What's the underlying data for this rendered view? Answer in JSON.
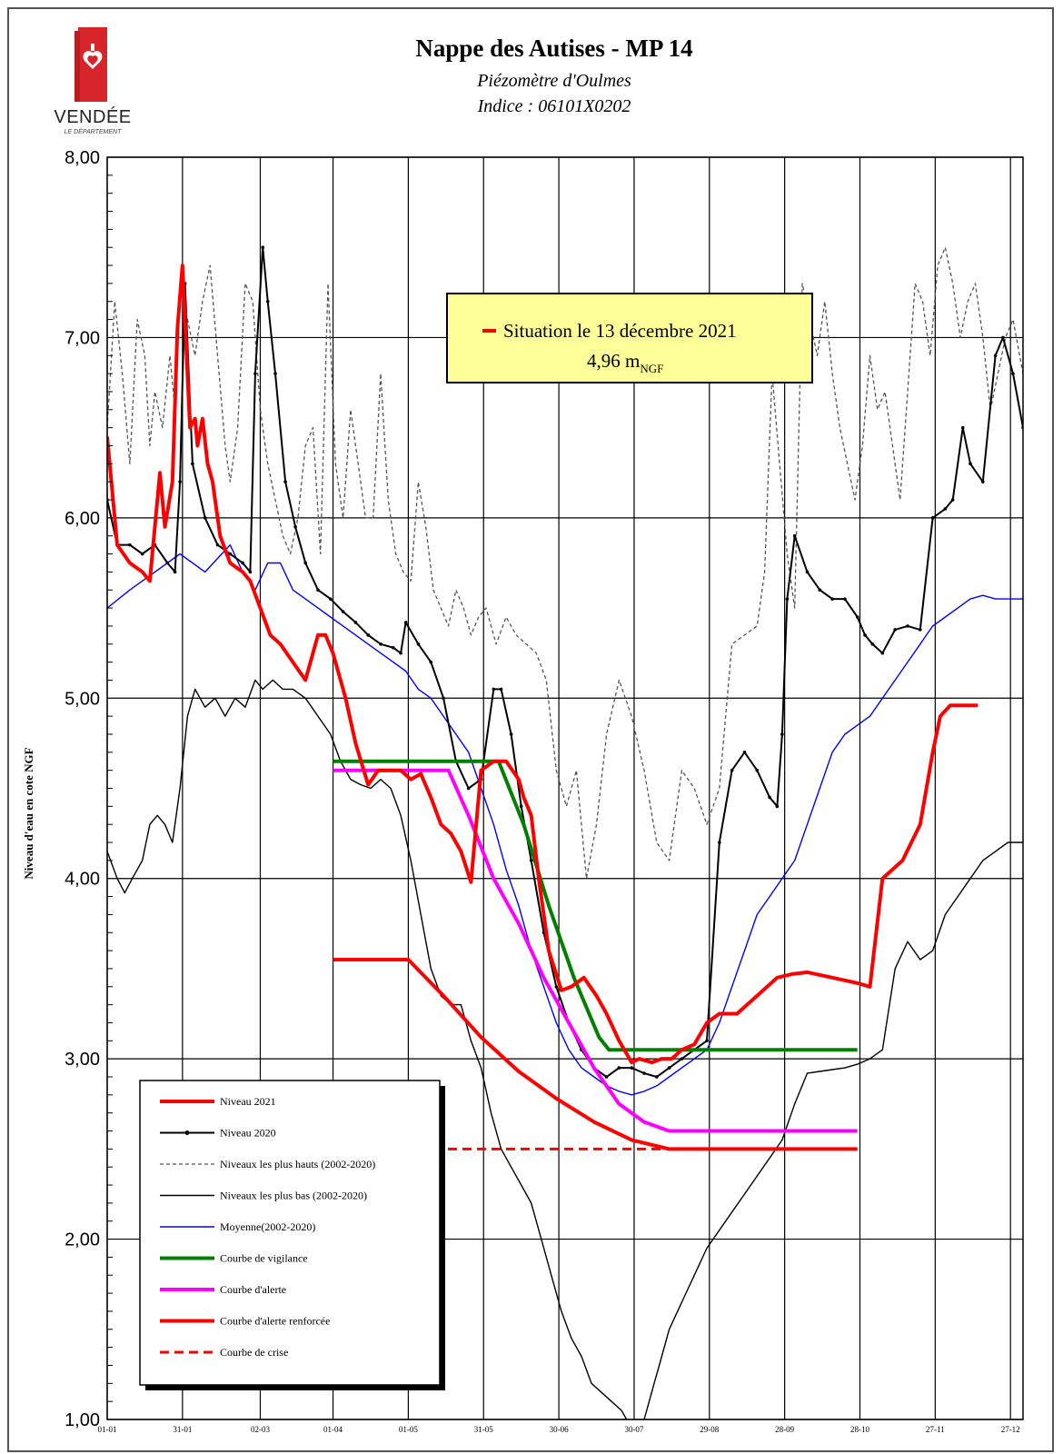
{
  "logo": {
    "name": "VENDÉE",
    "subtitle": "LE DÉPARTEMENT"
  },
  "header": {
    "title": "Nappe des Autises - MP 14",
    "subtitle": "Piézomètre d'Oulmes",
    "indice": "Indice : 06101X0202"
  },
  "chart_data": {
    "type": "line",
    "ylabel": "Niveau d'eau en cote NGF",
    "ylim": [
      1,
      8
    ],
    "yticks": [
      1,
      2,
      3,
      4,
      5,
      6,
      7,
      8
    ],
    "ytick_labels": [
      "1,00",
      "2,00",
      "3,00",
      "4,00",
      "5,00",
      "6,00",
      "7,00",
      "8,00"
    ],
    "x_unit": "day of year",
    "xlim": [
      1,
      366
    ],
    "xticks": [
      1,
      31,
      62,
      91,
      121,
      151,
      181,
      211,
      241,
      271,
      301,
      331,
      361
    ],
    "xtick_labels": [
      "01-01",
      "31-01",
      "02-03",
      "01-04",
      "01-05",
      "31-05",
      "30-06",
      "30-07",
      "29-08",
      "28-09",
      "28-10",
      "27-11",
      "27-12"
    ],
    "grid": true,
    "annotation": {
      "line1": "Situation le 13 décembre 2021",
      "value": "4,96 m",
      "unit_sub": "NGF"
    },
    "legend_position": "bottom-left",
    "series": [
      {
        "name": "Niveau 2021",
        "color": "#ff0000",
        "style": "solid-thick",
        "x": [
          1,
          5,
          10,
          15,
          18,
          22,
          24,
          27,
          29,
          31,
          34,
          36,
          37,
          39,
          41,
          43,
          46,
          50,
          55,
          58,
          62,
          66,
          70,
          75,
          80,
          85,
          88,
          91,
          96,
          100,
          105,
          109,
          114,
          118,
          122,
          126,
          130,
          134,
          138,
          142,
          146,
          150,
          155,
          160,
          165,
          167,
          170,
          173,
          177,
          182,
          186,
          191,
          196,
          200,
          205,
          210,
          213,
          218,
          222,
          226,
          230,
          235,
          240,
          245,
          252,
          260,
          268,
          274,
          280,
          290,
          300,
          305,
          310,
          318,
          325,
          330,
          333,
          337,
          341,
          345,
          348
        ],
        "y": [
          6.45,
          5.85,
          5.75,
          5.7,
          5.65,
          6.25,
          5.95,
          6.2,
          7.05,
          7.4,
          6.5,
          6.55,
          6.4,
          6.55,
          6.3,
          6.2,
          5.9,
          5.75,
          5.7,
          5.65,
          5.5,
          5.35,
          5.3,
          5.2,
          5.1,
          5.35,
          5.35,
          5.25,
          5.0,
          4.75,
          4.52,
          4.6,
          4.6,
          4.6,
          4.55,
          4.58,
          4.45,
          4.3,
          4.25,
          4.15,
          3.98,
          4.6,
          4.65,
          4.65,
          4.55,
          4.45,
          4.35,
          4.0,
          3.6,
          3.38,
          3.4,
          3.45,
          3.35,
          3.25,
          3.1,
          2.98,
          3.0,
          2.98,
          3.0,
          3.0,
          3.05,
          3.08,
          3.2,
          3.25,
          3.25,
          3.35,
          3.45,
          3.47,
          3.48,
          3.45,
          3.42,
          3.4,
          4.0,
          4.1,
          4.3,
          4.7,
          4.9,
          4.96,
          4.96,
          4.96,
          4.96
        ]
      },
      {
        "name": "Niveau 2020",
        "color": "#000000",
        "style": "solid-markers",
        "x": [
          1,
          5,
          10,
          15,
          20,
          25,
          28,
          30,
          32,
          35,
          40,
          45,
          50,
          55,
          58,
          60,
          63,
          65,
          68,
          72,
          76,
          80,
          85,
          90,
          95,
          100,
          105,
          110,
          115,
          118,
          120,
          125,
          130,
          135,
          140,
          145,
          150,
          155,
          158,
          162,
          166,
          170,
          175,
          180,
          185,
          190,
          195,
          200,
          205,
          210,
          215,
          220,
          225,
          230,
          235,
          240,
          245,
          250,
          255,
          260,
          265,
          268,
          270,
          272,
          275,
          280,
          285,
          290,
          295,
          300,
          303,
          306,
          310,
          315,
          320,
          325,
          330,
          335,
          338,
          342,
          345,
          350,
          355,
          358,
          362,
          366
        ],
        "y": [
          6.1,
          5.85,
          5.85,
          5.8,
          5.85,
          5.75,
          5.7,
          6.2,
          7.3,
          6.3,
          6.0,
          5.85,
          5.8,
          5.75,
          5.7,
          6.8,
          7.5,
          7.2,
          6.8,
          6.2,
          5.95,
          5.75,
          5.6,
          5.55,
          5.48,
          5.42,
          5.35,
          5.3,
          5.28,
          5.25,
          5.42,
          5.3,
          5.2,
          5.0,
          4.65,
          4.5,
          4.55,
          5.05,
          5.05,
          4.8,
          4.4,
          4.1,
          3.7,
          3.4,
          3.2,
          3.05,
          2.95,
          2.9,
          2.95,
          2.95,
          2.92,
          2.9,
          2.95,
          3.0,
          3.05,
          3.1,
          4.2,
          4.6,
          4.7,
          4.6,
          4.45,
          4.4,
          4.8,
          5.55,
          5.9,
          5.7,
          5.6,
          5.55,
          5.55,
          5.45,
          5.35,
          5.3,
          5.25,
          5.38,
          5.4,
          5.38,
          6.0,
          6.05,
          6.1,
          6.5,
          6.3,
          6.2,
          6.9,
          7.0,
          6.8,
          6.5
        ]
      },
      {
        "name": "Niveaux les plus hauts (2002-2020)",
        "color": "#555555",
        "style": "dashed",
        "x": [
          1,
          4,
          7,
          10,
          13,
          16,
          18,
          20,
          23,
          26,
          28,
          30,
          33,
          36,
          39,
          42,
          45,
          48,
          50,
          53,
          56,
          59,
          62,
          65,
          68,
          71,
          74,
          77,
          80,
          83,
          86,
          89,
          92,
          95,
          98,
          101,
          104,
          107,
          110,
          113,
          116,
          119,
          122,
          125,
          128,
          131,
          134,
          137,
          140,
          143,
          146,
          149,
          152,
          156,
          160,
          164,
          168,
          172,
          176,
          180,
          184,
          188,
          192,
          196,
          200,
          205,
          210,
          215,
          220,
          225,
          230,
          235,
          240,
          245,
          250,
          255,
          260,
          263,
          266,
          269,
          272,
          275,
          278,
          281,
          284,
          287,
          290,
          293,
          296,
          299,
          302,
          305,
          308,
          311,
          314,
          317,
          320,
          323,
          326,
          329,
          332,
          335,
          338,
          341,
          344,
          347,
          350,
          353,
          356,
          359,
          362,
          366
        ],
        "y": [
          6.5,
          7.2,
          6.8,
          6.3,
          7.1,
          6.9,
          6.4,
          6.7,
          6.5,
          6.9,
          6.6,
          7.3,
          7.1,
          6.9,
          7.2,
          7.4,
          6.9,
          6.4,
          6.2,
          6.5,
          7.3,
          7.2,
          6.6,
          6.3,
          6.1,
          5.9,
          5.8,
          6.0,
          6.4,
          6.5,
          5.8,
          7.3,
          6.3,
          6.0,
          6.6,
          6.3,
          6.0,
          6.0,
          6.8,
          6.1,
          5.8,
          5.7,
          5.65,
          6.2,
          5.95,
          5.6,
          5.5,
          5.4,
          5.6,
          5.5,
          5.35,
          5.45,
          5.5,
          5.3,
          5.45,
          5.35,
          5.3,
          5.25,
          5.1,
          4.6,
          4.4,
          4.6,
          4.0,
          4.3,
          4.8,
          5.1,
          4.9,
          4.6,
          4.2,
          4.1,
          4.6,
          4.5,
          4.3,
          4.5,
          5.3,
          5.35,
          5.4,
          5.7,
          6.8,
          6.3,
          5.8,
          5.5,
          7.3,
          7.1,
          6.9,
          7.2,
          6.8,
          6.5,
          6.3,
          6.1,
          6.4,
          6.9,
          6.6,
          6.7,
          6.4,
          6.1,
          6.7,
          7.3,
          7.2,
          6.9,
          7.4,
          7.5,
          7.3,
          7.0,
          7.2,
          7.3,
          7.0,
          6.6,
          6.8,
          7.0,
          7.1,
          6.8
        ]
      },
      {
        "name": "Niveaux les plus bas (2002-2020)",
        "color": "#000000",
        "style": "solid-thin",
        "x": [
          1,
          5,
          8,
          11,
          15,
          18,
          21,
          24,
          27,
          30,
          33,
          36,
          40,
          44,
          48,
          52,
          56,
          60,
          63,
          67,
          71,
          75,
          80,
          85,
          90,
          94,
          98,
          102,
          106,
          110,
          114,
          118,
          122,
          126,
          130,
          134,
          138,
          142,
          146,
          150,
          154,
          158,
          162,
          166,
          170,
          174,
          178,
          182,
          186,
          190,
          194,
          198,
          202,
          206,
          210,
          213,
          215,
          217,
          219,
          221,
          225,
          230,
          235,
          240,
          245,
          250,
          255,
          260,
          265,
          270,
          275,
          280,
          285,
          290,
          295,
          300,
          305,
          310,
          315,
          320,
          325,
          330,
          335,
          340,
          345,
          350,
          355,
          360,
          364,
          366
        ],
        "y": [
          4.15,
          4.0,
          3.92,
          4.0,
          4.1,
          4.3,
          4.35,
          4.3,
          4.2,
          4.5,
          4.9,
          5.05,
          4.95,
          5.0,
          4.9,
          5.0,
          4.95,
          5.1,
          5.05,
          5.1,
          5.05,
          5.05,
          5.0,
          4.9,
          4.8,
          4.65,
          4.55,
          4.52,
          4.5,
          4.55,
          4.5,
          4.35,
          4.1,
          3.8,
          3.5,
          3.35,
          3.3,
          3.3,
          3.1,
          2.95,
          2.7,
          2.5,
          2.4,
          2.3,
          2.2,
          2.0,
          1.8,
          1.6,
          1.45,
          1.35,
          1.2,
          1.15,
          1.1,
          1.05,
          0.95,
          0.95,
          1.0,
          1.1,
          1.2,
          1.3,
          1.5,
          1.65,
          1.8,
          1.95,
          2.05,
          2.15,
          2.25,
          2.35,
          2.45,
          2.55,
          2.75,
          2.92,
          2.93,
          2.94,
          2.95,
          2.97,
          3.0,
          3.05,
          3.5,
          3.65,
          3.55,
          3.6,
          3.8,
          3.9,
          4.0,
          4.1,
          4.15,
          4.2,
          4.2,
          4.2
        ]
      },
      {
        "name": "Moyenne(2002-2020)",
        "color": "#0000ff",
        "style": "solid-thin",
        "x": [
          1,
          10,
          20,
          30,
          40,
          50,
          55,
          60,
          65,
          70,
          75,
          80,
          85,
          90,
          95,
          100,
          105,
          110,
          115,
          120,
          125,
          130,
          135,
          140,
          145,
          150,
          155,
          160,
          165,
          170,
          175,
          180,
          185,
          190,
          195,
          200,
          205,
          210,
          215,
          220,
          225,
          230,
          235,
          240,
          245,
          250,
          255,
          260,
          265,
          270,
          275,
          280,
          285,
          290,
          295,
          300,
          305,
          310,
          315,
          320,
          325,
          330,
          335,
          340,
          345,
          350,
          355,
          360,
          366
        ],
        "y": [
          5.5,
          5.6,
          5.7,
          5.8,
          5.7,
          5.85,
          5.7,
          5.6,
          5.75,
          5.75,
          5.6,
          5.55,
          5.5,
          5.45,
          5.4,
          5.35,
          5.3,
          5.25,
          5.2,
          5.15,
          5.05,
          5.0,
          4.9,
          4.8,
          4.7,
          4.5,
          4.3,
          4.05,
          3.85,
          3.6,
          3.4,
          3.2,
          3.05,
          2.95,
          2.9,
          2.85,
          2.82,
          2.8,
          2.82,
          2.85,
          2.9,
          2.95,
          3.0,
          3.05,
          3.2,
          3.4,
          3.6,
          3.8,
          3.9,
          4.0,
          4.1,
          4.3,
          4.5,
          4.7,
          4.8,
          4.85,
          4.9,
          5.0,
          5.1,
          5.2,
          5.3,
          5.4,
          5.45,
          5.5,
          5.55,
          5.57,
          5.55,
          5.55,
          5.55
        ]
      },
      {
        "name": "Courbe de vigilance",
        "color": "#008000",
        "style": "solid-thick",
        "x": [
          91,
          157,
          167,
          177,
          187,
          197,
          201,
          300
        ],
        "y": [
          4.65,
          4.65,
          4.3,
          3.85,
          3.45,
          3.12,
          3.05,
          3.05
        ]
      },
      {
        "name": "Courbe d'alerte",
        "color": "#ff00ff",
        "style": "solid-thick",
        "x": [
          91,
          137,
          145,
          155,
          165,
          175,
          185,
          195,
          205,
          215,
          225,
          300
        ],
        "y": [
          4.6,
          4.6,
          4.35,
          4.0,
          3.75,
          3.45,
          3.2,
          2.95,
          2.75,
          2.65,
          2.6,
          2.6
        ]
      },
      {
        "name": "Courbe d'alerte renforcée",
        "color": "#ff0000",
        "style": "solid-thick",
        "x": [
          91,
          121,
          135,
          150,
          165,
          180,
          195,
          210,
          225,
          300
        ],
        "y": [
          3.55,
          3.55,
          3.35,
          3.12,
          2.93,
          2.78,
          2.65,
          2.55,
          2.5,
          2.5
        ]
      },
      {
        "name": "Courbe de crise",
        "color": "#ff0000",
        "style": "dashed-thick",
        "x": [
          131,
          300
        ],
        "y": [
          2.5,
          2.5
        ]
      }
    ]
  }
}
